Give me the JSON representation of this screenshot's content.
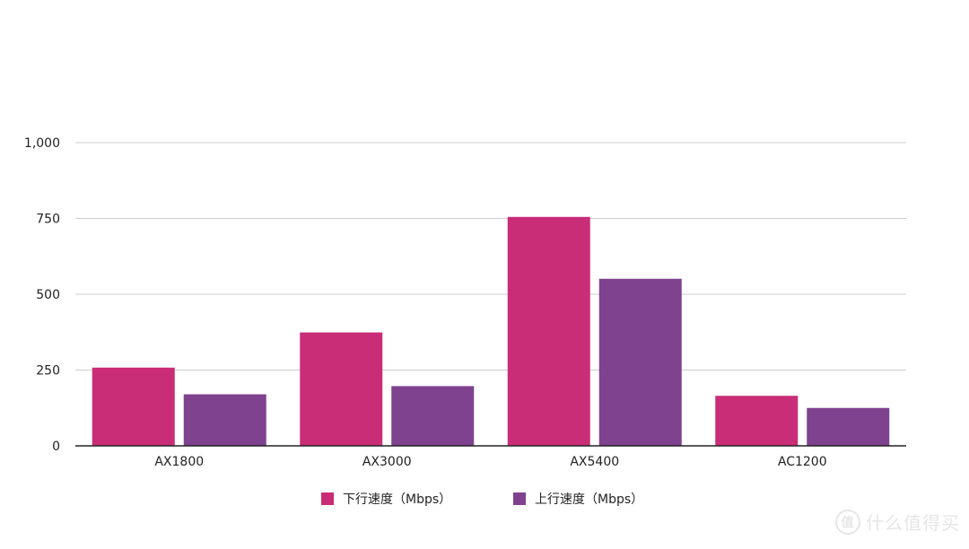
{
  "chart_data": {
    "type": "bar",
    "title": "",
    "xlabel": "",
    "ylabel": "",
    "categories": [
      "AX1800",
      "AX3000",
      "AX5400",
      "AC1200"
    ],
    "series": [
      {
        "name": "下行速度（Mbps）",
        "color": "#c92d77",
        "values": [
          258,
          374,
          755,
          165
        ]
      },
      {
        "name": "上行速度（Mbps）",
        "color": "#7f428e",
        "values": [
          170,
          197,
          551,
          125
        ]
      }
    ],
    "ylim": [
      0,
      1000
    ],
    "yticks": [
      0,
      250,
      500,
      750,
      1000
    ],
    "ytick_labels": [
      "0",
      "250",
      "500",
      "750",
      "1,000"
    ],
    "grid": true,
    "legend_position": "bottom"
  },
  "watermark": {
    "badge": "值",
    "text": "什么值得买"
  }
}
